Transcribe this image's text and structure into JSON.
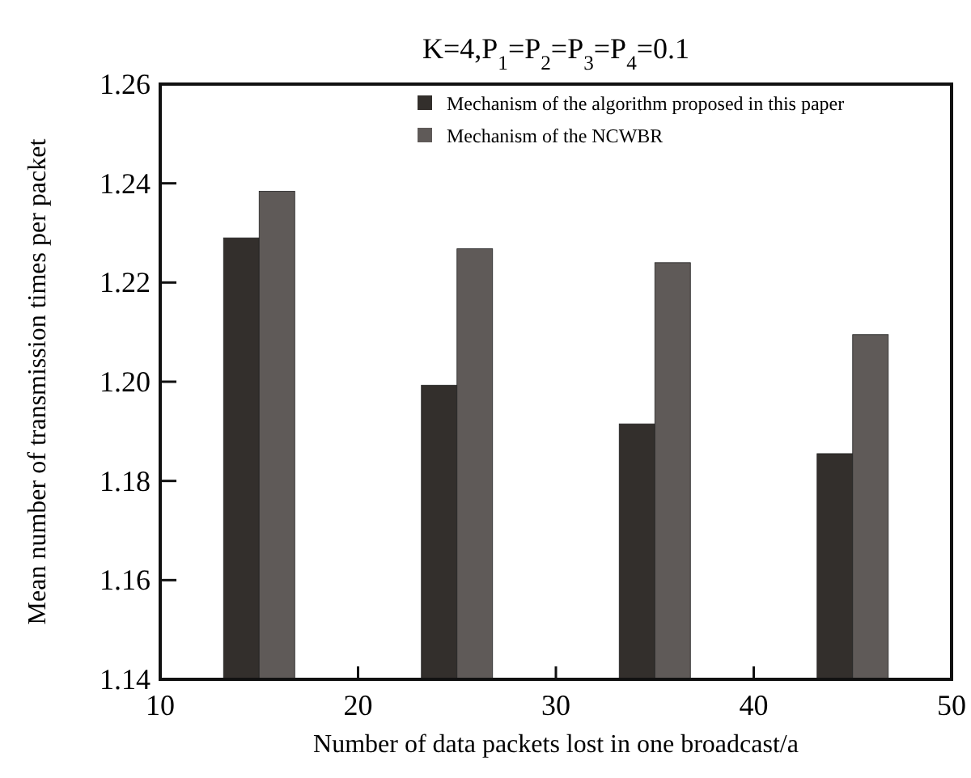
{
  "chart_data": {
    "type": "bar",
    "title": "K=4,P$_{1}$=P$_{2}$=P$_{3}$=P$_{4}$=0.1",
    "xlabel": "Number of data packets lost in one broadcast/a",
    "ylabel": "Mean number of transmission times per packet",
    "x": [
      15,
      25,
      35,
      45
    ],
    "series": [
      {
        "name": "Mechanism of the algorithm proposed in this paper",
        "color": "#332f2c",
        "values": [
          1.229,
          1.1993,
          1.1915,
          1.1855
        ]
      },
      {
        "name": "Mechanism of the NCWBR",
        "color": "#5f5a58",
        "values": [
          1.2384,
          1.2268,
          1.224,
          1.2095
        ]
      }
    ],
    "xlim": [
      10,
      50
    ],
    "xticks": [
      10,
      20,
      30,
      40,
      50
    ],
    "ylim": [
      1.14,
      1.26
    ],
    "yticks": [
      {
        "value": 1.14,
        "label": "1.14"
      },
      {
        "value": 1.16,
        "label": "1.16"
      },
      {
        "value": 1.18,
        "label": "1.18"
      },
      {
        "value": 1.2,
        "label": "1.20"
      },
      {
        "value": 1.22,
        "label": "1.22"
      },
      {
        "value": 1.24,
        "label": "1.24"
      },
      {
        "value": 1.26,
        "label": "1.26"
      }
    ],
    "grid": false,
    "legend": "top right"
  }
}
